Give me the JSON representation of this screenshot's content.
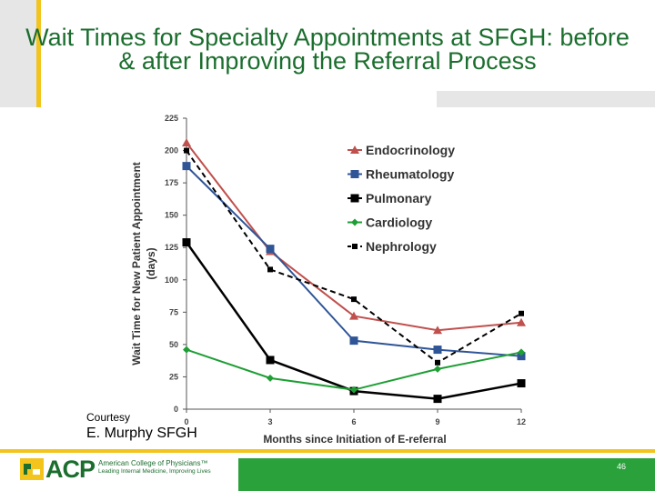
{
  "slide": {
    "title": "Wait Times for Specialty Appointments at SFGH: before & after Improving the Referral Process",
    "courtesy": "Courtesy",
    "credit": "E. Murphy SFGH",
    "page_number": "46"
  },
  "footer": {
    "logo_text": "ACP",
    "org_name": "American College of Physicians™",
    "tagline": "Leading Internal Medicine, Improving Lives"
  },
  "colors": {
    "title": "#1b6e2e",
    "accent_yellow": "#f2c41c",
    "footer_green": "#2aa13a"
  },
  "chart_data": {
    "type": "line",
    "title": "",
    "xlabel": "Months since Initiation of E-referral",
    "ylabel": "Wait Time for New Patient Appointment (days)",
    "x": [
      0,
      3,
      6,
      9,
      12
    ],
    "x_ticks": [
      "0",
      "3",
      "6",
      "9",
      "12"
    ],
    "y_ticks": [
      "0",
      "25",
      "50",
      "75",
      "100",
      "125",
      "150",
      "175",
      "200",
      "225"
    ],
    "xlim": [
      0,
      12
    ],
    "ylim": [
      0,
      225
    ],
    "grid": false,
    "legend_position": "top-right",
    "series": [
      {
        "name": "Endocrinology",
        "values": [
          206,
          122,
          72,
          61,
          67
        ],
        "color": "#c0504d",
        "marker": "triangle",
        "dash": "solid"
      },
      {
        "name": "Rheumatology",
        "values": [
          188,
          124,
          53,
          46,
          41
        ],
        "color": "#2f5597",
        "marker": "square",
        "dash": "solid"
      },
      {
        "name": "Pulmonary",
        "values": [
          129,
          38,
          14,
          8,
          20
        ],
        "color": "#000000",
        "marker": "square",
        "dash": "solid"
      },
      {
        "name": "Cardiology",
        "values": [
          46,
          24,
          15,
          31,
          44
        ],
        "color": "#1e9e34",
        "marker": "diamond",
        "dash": "solid"
      },
      {
        "name": "Nephrology",
        "values": [
          200,
          108,
          85,
          36,
          74
        ],
        "color": "#000000",
        "marker": "square-small",
        "dash": "dashed"
      }
    ]
  }
}
